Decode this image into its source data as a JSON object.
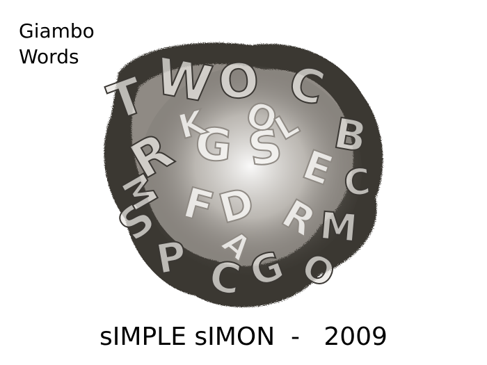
{
  "brand": {
    "line1": "Giambo",
    "line2": "Words"
  },
  "artwork": {
    "icon": "ice-letters-cluster-icon",
    "letters": [
      "T",
      "W",
      "O",
      "C",
      "B",
      "R",
      "G",
      "S",
      "E",
      "C",
      "S",
      "F",
      "D",
      "R",
      "M",
      "P",
      "C",
      "G",
      "O",
      "M",
      "O",
      "K",
      "L",
      "A"
    ],
    "colors": {
      "dark": "#3a3733",
      "mid": "#8f8a84",
      "light": "#e8e6e2",
      "ice": "#f6f5f2"
    }
  },
  "caption": {
    "text": "sIMPLE sIMON  -   2009"
  }
}
